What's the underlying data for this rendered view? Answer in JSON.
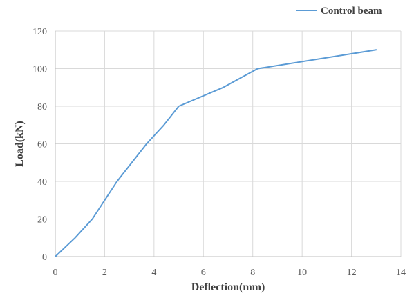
{
  "chart_data": {
    "type": "line",
    "title": "",
    "xlabel": "Deflection(mm)",
    "ylabel": "Load(kN)",
    "xlim": [
      0,
      14
    ],
    "ylim": [
      0,
      120
    ],
    "x_ticks": [
      0,
      2,
      4,
      6,
      8,
      10,
      12,
      14
    ],
    "y_ticks": [
      0,
      20,
      40,
      60,
      80,
      100,
      120
    ],
    "grid": true,
    "legend_position": "top-right",
    "series": [
      {
        "name": "Control beam",
        "color": "#5b9bd5",
        "points": [
          [
            0,
            0
          ],
          [
            0.8,
            10
          ],
          [
            1.5,
            20
          ],
          [
            2.5,
            40
          ],
          [
            3.7,
            60
          ],
          [
            4.4,
            70
          ],
          [
            5.0,
            80
          ],
          [
            6.8,
            90
          ],
          [
            8.2,
            100
          ],
          [
            13.0,
            110
          ]
        ]
      }
    ]
  }
}
